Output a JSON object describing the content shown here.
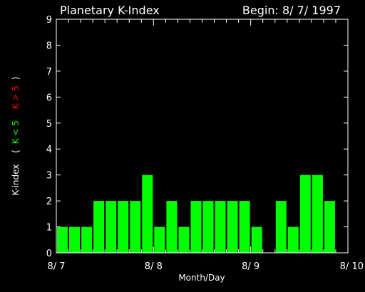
{
  "chart_data": {
    "type": "bar",
    "title": "Planetary K-Index",
    "begin_label": "Begin: 8/ 7/ 1997",
    "xlabel": "Month/Day",
    "ylabel_prefix": "K-index",
    "ylabel_open": "(",
    "ylabel_green": "K < 5",
    "ylabel_red": "K > 5",
    "ylabel_close": ")",
    "ylim": [
      0,
      9
    ],
    "yticks": [
      "0",
      "1",
      "2",
      "3",
      "4",
      "5",
      "6",
      "7",
      "8",
      "9"
    ],
    "xlim": [
      0,
      24
    ],
    "xticks": [
      {
        "label": "8/ 7",
        "x": 0
      },
      {
        "label": "8/ 8",
        "x": 8
      },
      {
        "label": "8/ 9",
        "x": 16
      },
      {
        "label": "8/ 10",
        "x": 24
      }
    ],
    "values": [
      1,
      1,
      1,
      2,
      2,
      2,
      2,
      3,
      1,
      2,
      1,
      2,
      2,
      2,
      2,
      2,
      1,
      0,
      2,
      1,
      3,
      3,
      2,
      0
    ],
    "threshold": 5,
    "colors": {
      "background": "#000000",
      "axes": "#ffffff",
      "text": "#ffffff",
      "bar_low": "#00ff00",
      "bar_high": "#ff0000",
      "label_green": "#00ff00",
      "label_red": "#ff0000"
    }
  }
}
